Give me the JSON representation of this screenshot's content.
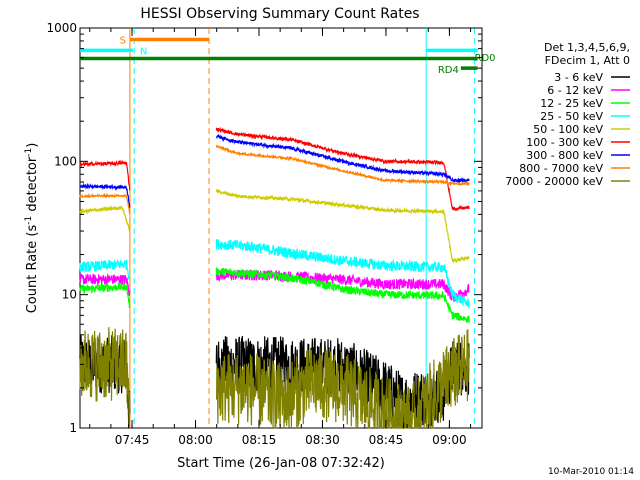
{
  "chart_data": {
    "type": "line",
    "title": "HESSI Observing Summary Count Rates",
    "xlabel": "Start Time (26-Jan-08 07:32:42)",
    "ylabel_main": "Count Rate (s",
    "ylabel_sup1": "-1",
    "ylabel_mid": " detector",
    "ylabel_sup2": "-1",
    "ylabel_end": ")",
    "x_unit": "minutes since 07:32:42",
    "xlim": [
      0,
      95
    ],
    "ylim": [
      1,
      1000
    ],
    "yscale": "log",
    "x_ticks": [
      {
        "label": "07:45",
        "value": 12.3
      },
      {
        "label": "08:00",
        "value": 27.3
      },
      {
        "label": "08:15",
        "value": 42.3
      },
      {
        "label": "08:30",
        "value": 57.3
      },
      {
        "label": "08:45",
        "value": 72.3
      },
      {
        "label": "09:00",
        "value": 87.3
      }
    ],
    "y_ticks": [
      {
        "label": "1",
        "value": 1
      },
      {
        "label": "10",
        "value": 10
      },
      {
        "label": "100",
        "value": 100
      },
      {
        "label": "1000",
        "value": 1000
      }
    ],
    "legend_header": [
      "Det 1,3,4,5,6,9,",
      "FDecim 1, Att 0"
    ],
    "legend_position": "right",
    "series": [
      {
        "name": "3 - 6 keV",
        "color": "#000000",
        "points": [
          [
            0,
            3
          ],
          [
            11,
            3
          ],
          [
            11.8,
            1
          ],
          [
            32.2,
            3
          ],
          [
            62,
            2.9
          ],
          [
            72,
            2
          ],
          [
            76,
            1.6
          ],
          [
            86,
            1.8
          ],
          [
            88,
            2.8
          ],
          [
            92,
            2.9
          ]
        ],
        "noise": 0.22
      },
      {
        "name": "6 - 12 keV",
        "color": "#ff00ff",
        "points": [
          [
            0,
            13
          ],
          [
            11,
            13
          ],
          [
            11.8,
            10
          ],
          [
            32.2,
            14
          ],
          [
            45,
            14
          ],
          [
            62,
            13
          ],
          [
            72,
            12
          ],
          [
            86,
            12
          ],
          [
            88,
            9.5
          ],
          [
            92,
            11
          ]
        ],
        "noise": 0.04
      },
      {
        "name": "12 - 25 keV",
        "color": "#00ff00",
        "points": [
          [
            0,
            11
          ],
          [
            11,
            11.5
          ],
          [
            11.8,
            8
          ],
          [
            32.2,
            15
          ],
          [
            45,
            14
          ],
          [
            55,
            12.5
          ],
          [
            62,
            11
          ],
          [
            72,
            10
          ],
          [
            86,
            9.8
          ],
          [
            88,
            7
          ],
          [
            92,
            6.5
          ]
        ],
        "noise": 0.03
      },
      {
        "name": "25 - 50 keV",
        "color": "#00ffff",
        "points": [
          [
            0,
            16
          ],
          [
            11,
            17
          ],
          [
            11.8,
            13
          ],
          [
            32.2,
            24
          ],
          [
            40,
            23
          ],
          [
            52,
            20
          ],
          [
            62,
            18
          ],
          [
            72,
            16.5
          ],
          [
            86,
            16
          ],
          [
            88,
            10
          ],
          [
            92,
            8.5
          ]
        ],
        "noise": 0.04
      },
      {
        "name": "50 - 100 keV",
        "color": "#cccc00",
        "points": [
          [
            0,
            42
          ],
          [
            10,
            45
          ],
          [
            11.8,
            30
          ],
          [
            32.2,
            60
          ],
          [
            37,
            55
          ],
          [
            50,
            52
          ],
          [
            62,
            47
          ],
          [
            72,
            43
          ],
          [
            86,
            42
          ],
          [
            88,
            18
          ],
          [
            92,
            19
          ]
        ],
        "noise": 0.012
      },
      {
        "name": "100 - 300 keV",
        "color": "#ff0000",
        "points": [
          [
            0,
            95
          ],
          [
            11,
            97
          ],
          [
            11.8,
            60
          ],
          [
            32.2,
            175
          ],
          [
            37,
            160
          ],
          [
            50,
            145
          ],
          [
            62,
            115
          ],
          [
            72,
            100
          ],
          [
            86,
            98
          ],
          [
            88,
            44
          ],
          [
            92,
            45
          ]
        ],
        "noise": 0.012
      },
      {
        "name": "300 - 800 keV",
        "color": "#0000ff",
        "points": [
          [
            0,
            65
          ],
          [
            11,
            64
          ],
          [
            11.8,
            45
          ],
          [
            32.2,
            155
          ],
          [
            37,
            140
          ],
          [
            50,
            125
          ],
          [
            62,
            100
          ],
          [
            72,
            85
          ],
          [
            86,
            80
          ],
          [
            88,
            72
          ],
          [
            92,
            72
          ]
        ],
        "noise": 0.012
      },
      {
        "name": "800 - 7000 keV",
        "color": "#ff8000",
        "points": [
          [
            0,
            55
          ],
          [
            11,
            55
          ],
          [
            11.8,
            40
          ],
          [
            32.2,
            130
          ],
          [
            37,
            115
          ],
          [
            50,
            105
          ],
          [
            62,
            85
          ],
          [
            72,
            72
          ],
          [
            86,
            70
          ],
          [
            88,
            68
          ],
          [
            92,
            68
          ]
        ],
        "noise": 0.008
      },
      {
        "name": "7000 - 20000 keV",
        "color": "#808000",
        "points": [
          [
            0,
            3
          ],
          [
            11,
            3
          ],
          [
            11.8,
            1
          ],
          [
            32.2,
            2
          ],
          [
            40,
            2
          ],
          [
            48,
            1.6
          ],
          [
            55,
            2.2
          ],
          [
            62,
            2
          ],
          [
            72,
            1.3
          ],
          [
            78,
            1.1
          ],
          [
            88,
            2.5
          ],
          [
            92,
            3
          ]
        ],
        "noise": 0.28
      }
    ],
    "segments": [
      {
        "label": "S",
        "color": "#ff8000",
        "y": 820,
        "x1": 11.8,
        "x2": 30.5
      },
      {
        "label": "N",
        "color": "#00ffff",
        "y": 680,
        "x1": 0,
        "x2": 12.5
      },
      {
        "label": "",
        "color": "#00ffff",
        "y": 680,
        "x1": 81.8,
        "x2": 94
      },
      {
        "label": "",
        "color": "#008000",
        "y": 590,
        "x1": 0,
        "x2": 94
      },
      {
        "label": "RD4",
        "color": "#008000",
        "y": 500,
        "x1": 90,
        "x2": 94
      },
      {
        "label": "RD0",
        "color": "#008000",
        "y": 0,
        "x1": 93,
        "x2": 93
      }
    ],
    "vlines": [
      {
        "x": 11.8,
        "color": "#ff8000",
        "style": "solid"
      },
      {
        "x": 12.8,
        "color": "#00ffff",
        "style": "dashed"
      },
      {
        "x": 30.5,
        "color": "#ff8000",
        "style": "dashed"
      },
      {
        "x": 81.8,
        "color": "#00ffff",
        "style": "solid"
      },
      {
        "x": 93.2,
        "color": "#00ffff",
        "style": "dashed"
      }
    ],
    "grid": false
  },
  "footer_timestamp": "10-Mar-2010 01:14"
}
